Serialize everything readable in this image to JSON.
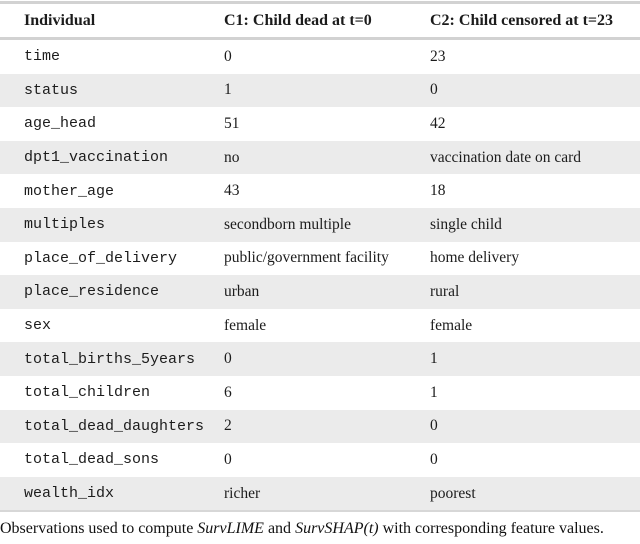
{
  "table": {
    "header": {
      "col1": "Individual",
      "col2": "C1: Child dead at t=0",
      "col3": "C2: Child censored at t=23"
    },
    "rows": [
      {
        "feature": "time",
        "c1": "0",
        "c2": "23"
      },
      {
        "feature": "status",
        "c1": "1",
        "c2": "0"
      },
      {
        "feature": "age_head",
        "c1": "51",
        "c2": "42"
      },
      {
        "feature": "dpt1_vaccination",
        "c1": "no",
        "c2": "vaccination date on card"
      },
      {
        "feature": "mother_age",
        "c1": "43",
        "c2": "18"
      },
      {
        "feature": "multiples",
        "c1": "secondborn multiple",
        "c2": "single child"
      },
      {
        "feature": "place_of_delivery",
        "c1": "public/government facility",
        "c2": "home delivery"
      },
      {
        "feature": "place_residence",
        "c1": "urban",
        "c2": "rural"
      },
      {
        "feature": "sex",
        "c1": "female",
        "c2": "female"
      },
      {
        "feature": "total_births_5years",
        "c1": "0",
        "c2": "1"
      },
      {
        "feature": "total_children",
        "c1": "6",
        "c2": "1"
      },
      {
        "feature": "total_dead_daughters",
        "c1": "2",
        "c2": "0"
      },
      {
        "feature": "total_dead_sons",
        "c1": "0",
        "c2": "0"
      },
      {
        "feature": "wealth_idx",
        "c1": "richer",
        "c2": "poorest"
      }
    ]
  },
  "caption": {
    "part1": "Observations used to compute ",
    "method1": "SurvLIME",
    "part2": " and ",
    "method2": "SurvSHAP(t)",
    "part3": " with corresponding feature values."
  },
  "colors": {
    "stripe": "#ebebeb",
    "rule": "#d2d2d2",
    "text": "#1c1c1c"
  }
}
